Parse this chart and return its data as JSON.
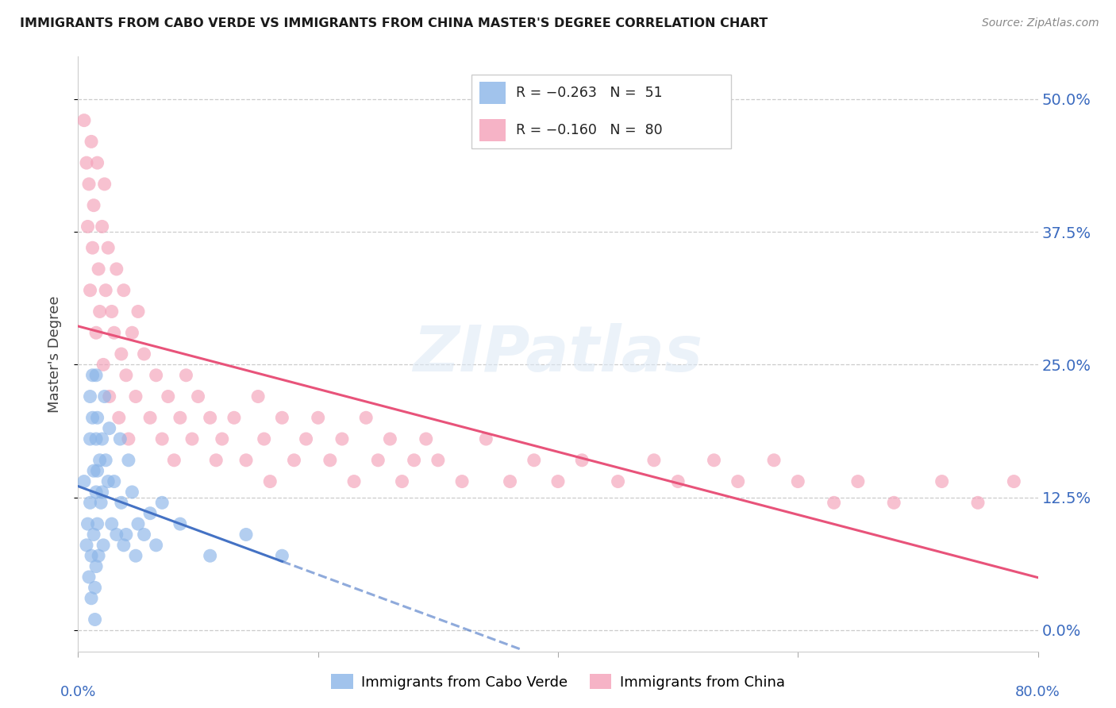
{
  "title": "IMMIGRANTS FROM CABO VERDE VS IMMIGRANTS FROM CHINA MASTER'S DEGREE CORRELATION CHART",
  "source": "Source: ZipAtlas.com",
  "ylabel": "Master's Degree",
  "ytick_labels": [
    "0.0%",
    "12.5%",
    "25.0%",
    "37.5%",
    "50.0%"
  ],
  "ytick_values": [
    0.0,
    0.125,
    0.25,
    0.375,
    0.5
  ],
  "xlim": [
    0.0,
    0.8
  ],
  "ylim": [
    -0.02,
    0.54
  ],
  "cabo_verde_color": "#8ab4e8",
  "china_color": "#f4a0b8",
  "cabo_verde_line_color": "#4472c4",
  "china_line_color": "#e8537a",
  "cabo_verde_x": [
    0.005,
    0.007,
    0.008,
    0.009,
    0.01,
    0.01,
    0.01,
    0.011,
    0.011,
    0.012,
    0.012,
    0.013,
    0.013,
    0.014,
    0.014,
    0.015,
    0.015,
    0.015,
    0.015,
    0.016,
    0.016,
    0.016,
    0.017,
    0.018,
    0.019,
    0.02,
    0.02,
    0.021,
    0.022,
    0.023,
    0.025,
    0.026,
    0.028,
    0.03,
    0.032,
    0.035,
    0.036,
    0.038,
    0.04,
    0.042,
    0.045,
    0.048,
    0.05,
    0.055,
    0.06,
    0.065,
    0.07,
    0.085,
    0.11,
    0.14,
    0.17
  ],
  "cabo_verde_y": [
    0.14,
    0.08,
    0.1,
    0.05,
    0.22,
    0.18,
    0.12,
    0.07,
    0.03,
    0.24,
    0.2,
    0.15,
    0.09,
    0.04,
    0.01,
    0.24,
    0.18,
    0.13,
    0.06,
    0.2,
    0.15,
    0.1,
    0.07,
    0.16,
    0.12,
    0.18,
    0.13,
    0.08,
    0.22,
    0.16,
    0.14,
    0.19,
    0.1,
    0.14,
    0.09,
    0.18,
    0.12,
    0.08,
    0.09,
    0.16,
    0.13,
    0.07,
    0.1,
    0.09,
    0.11,
    0.08,
    0.12,
    0.1,
    0.07,
    0.09,
    0.07
  ],
  "china_x": [
    0.005,
    0.007,
    0.008,
    0.009,
    0.01,
    0.011,
    0.012,
    0.013,
    0.015,
    0.016,
    0.017,
    0.018,
    0.02,
    0.021,
    0.022,
    0.023,
    0.025,
    0.026,
    0.028,
    0.03,
    0.032,
    0.034,
    0.036,
    0.038,
    0.04,
    0.042,
    0.045,
    0.048,
    0.05,
    0.055,
    0.06,
    0.065,
    0.07,
    0.075,
    0.08,
    0.085,
    0.09,
    0.095,
    0.1,
    0.11,
    0.115,
    0.12,
    0.13,
    0.14,
    0.15,
    0.155,
    0.16,
    0.17,
    0.18,
    0.19,
    0.2,
    0.21,
    0.22,
    0.23,
    0.24,
    0.25,
    0.26,
    0.27,
    0.28,
    0.29,
    0.3,
    0.32,
    0.34,
    0.36,
    0.38,
    0.4,
    0.42,
    0.45,
    0.48,
    0.5,
    0.53,
    0.55,
    0.58,
    0.6,
    0.63,
    0.65,
    0.68,
    0.72,
    0.75,
    0.78
  ],
  "china_y": [
    0.48,
    0.44,
    0.38,
    0.42,
    0.32,
    0.46,
    0.36,
    0.4,
    0.28,
    0.44,
    0.34,
    0.3,
    0.38,
    0.25,
    0.42,
    0.32,
    0.36,
    0.22,
    0.3,
    0.28,
    0.34,
    0.2,
    0.26,
    0.32,
    0.24,
    0.18,
    0.28,
    0.22,
    0.3,
    0.26,
    0.2,
    0.24,
    0.18,
    0.22,
    0.16,
    0.2,
    0.24,
    0.18,
    0.22,
    0.2,
    0.16,
    0.18,
    0.2,
    0.16,
    0.22,
    0.18,
    0.14,
    0.2,
    0.16,
    0.18,
    0.2,
    0.16,
    0.18,
    0.14,
    0.2,
    0.16,
    0.18,
    0.14,
    0.16,
    0.18,
    0.16,
    0.14,
    0.18,
    0.14,
    0.16,
    0.14,
    0.16,
    0.14,
    0.16,
    0.14,
    0.16,
    0.14,
    0.16,
    0.14,
    0.12,
    0.14,
    0.12,
    0.14,
    0.12,
    0.14
  ]
}
